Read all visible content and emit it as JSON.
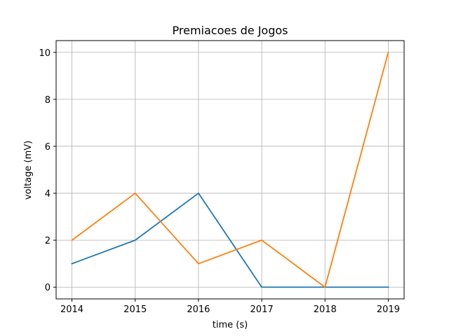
{
  "chart_data": {
    "type": "line",
    "title": "Premiacoes de Jogos",
    "xlabel": "time (s)",
    "ylabel": "voltage (mV)",
    "x": [
      2014,
      2015,
      2016,
      2017,
      2018,
      2019
    ],
    "xlim": [
      2013.75,
      2019.25
    ],
    "ylim": [
      -0.5,
      10.5
    ],
    "xticks": [
      "2014",
      "2015",
      "2016",
      "2017",
      "2018",
      "2019"
    ],
    "yticks": [
      0,
      2,
      4,
      6,
      8,
      10
    ],
    "grid": true,
    "series": [
      {
        "values": [
          1,
          2,
          4,
          0,
          0,
          0
        ],
        "color": "#1f77b4"
      },
      {
        "values": [
          2,
          4,
          1,
          2,
          0,
          10
        ],
        "color": "#ff7f0e"
      }
    ]
  }
}
